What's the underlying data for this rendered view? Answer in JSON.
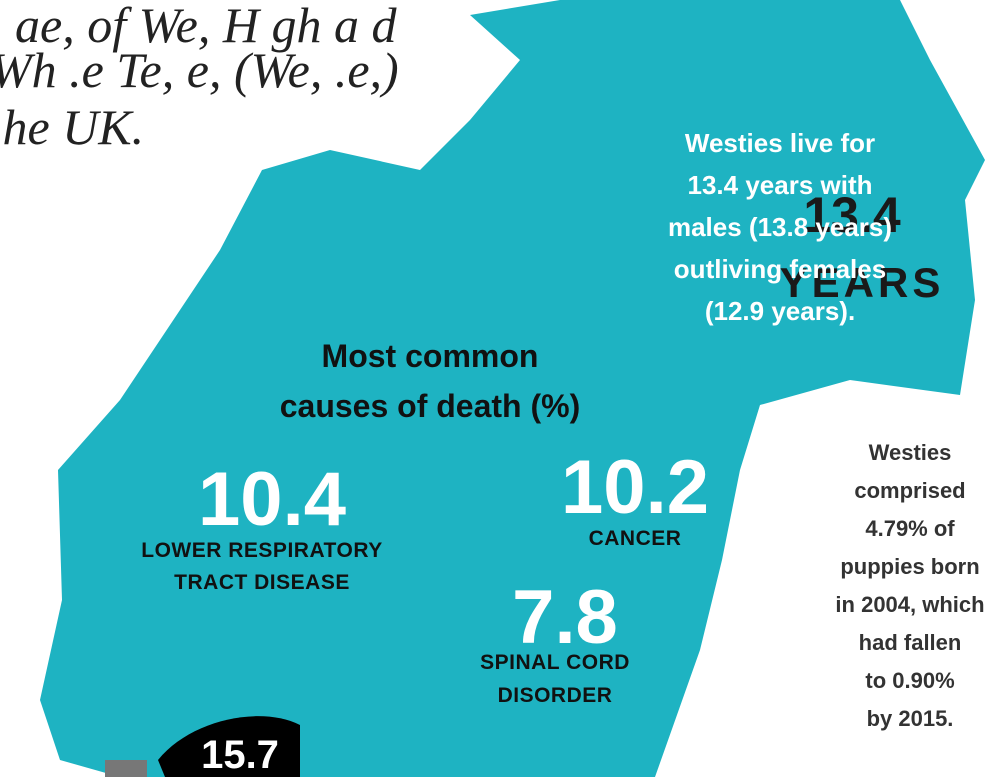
{
  "intro": {
    "lines": [
      ", ae, of We, H gh a d",
      "Wh .e Te, e, (We, .e,)",
      ".he UK."
    ]
  },
  "lifespan": {
    "lines": [
      "Westies live for",
      "13.4 years with",
      "males (13.8 years)",
      "outliving females",
      "(12.9 years)."
    ],
    "value": 13.4,
    "unit": "YEARS"
  },
  "causes": {
    "heading": [
      "Most common",
      "causes of death (%)"
    ],
    "items": [
      {
        "value": 10.4,
        "label": [
          "LOWER RESPIRATORY",
          "TRACT DISEASE"
        ]
      },
      {
        "value": 10.2,
        "label": [
          "CANCER"
        ]
      },
      {
        "value": 7.8,
        "label": [
          "SPINAL CORD",
          "DISORDER"
        ]
      }
    ]
  },
  "popularity": {
    "lines": [
      "Westies",
      "comprised",
      "4.79% of",
      "puppies born",
      "in 2004, which",
      "had fallen",
      "to 0.90%",
      "by 2015."
    ]
  },
  "footer_badge": 15.7
}
